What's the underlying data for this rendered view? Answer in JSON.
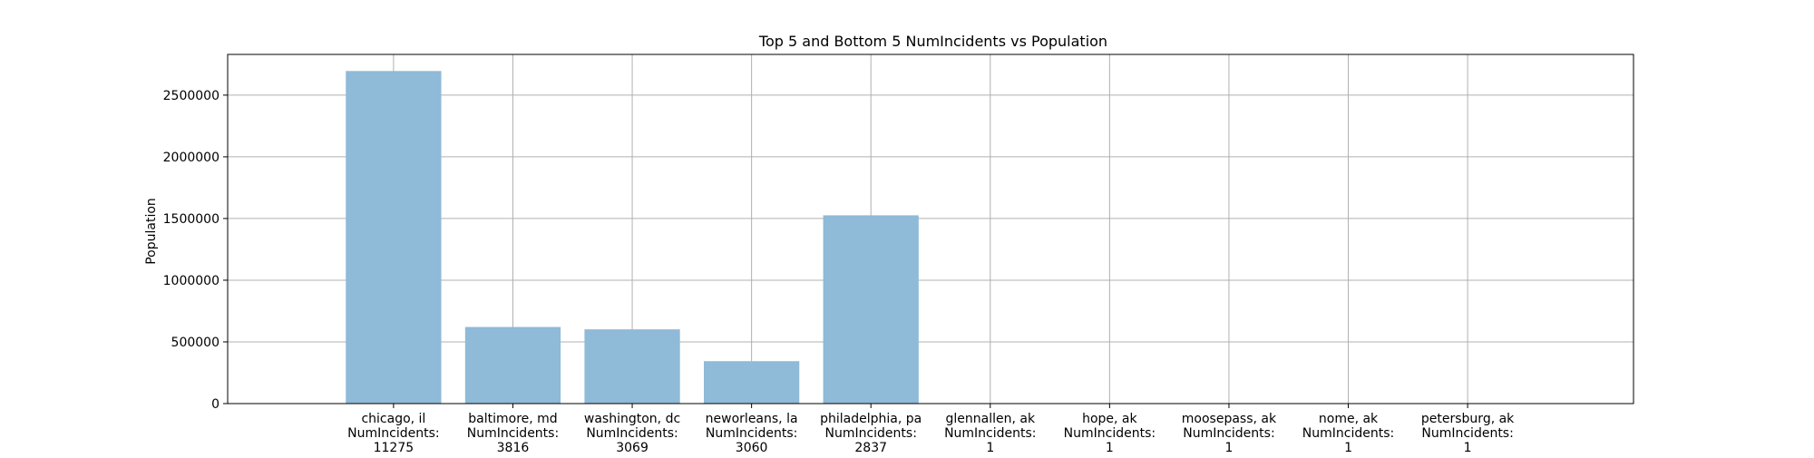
{
  "chart_data": {
    "type": "bar",
    "title": "Top 5 and Bottom 5 NumIncidents vs Population",
    "xlabel": "",
    "ylabel": "Population",
    "ylim": [
      0,
      2830000
    ],
    "yticks": [
      0,
      500000,
      1000000,
      1500000,
      2000000,
      2500000
    ],
    "ytick_labels": [
      "0",
      "500000",
      "1000000",
      "1500000",
      "2000000",
      "2500000"
    ],
    "grid": true,
    "bar_color": "#8fbad8",
    "categories": [
      [
        "chicago, il",
        "NumIncidents:",
        "11275"
      ],
      [
        "baltimore, md",
        "NumIncidents:",
        "3816"
      ],
      [
        "washington, dc",
        "NumIncidents:",
        "3069"
      ],
      [
        "neworleans, la",
        "NumIncidents:",
        "3060"
      ],
      [
        "philadelphia, pa",
        "NumIncidents:",
        "2837"
      ],
      [
        "glennallen, ak",
        "NumIncidents:",
        "1"
      ],
      [
        "hope, ak",
        "NumIncidents:",
        "1"
      ],
      [
        "moosepass, ak",
        "NumIncidents:",
        "1"
      ],
      [
        "nome, ak",
        "NumIncidents:",
        "1"
      ],
      [
        "petersburg, ak",
        "NumIncidents:",
        "1"
      ]
    ],
    "values": [
      2695598,
      620961,
      601723,
      343829,
      1526006,
      483,
      192,
      219,
      3598,
      3199
    ]
  }
}
